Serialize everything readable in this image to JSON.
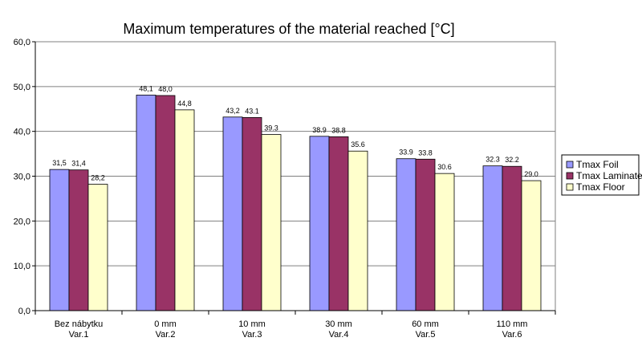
{
  "chart_data": {
    "type": "bar",
    "title": "Maximum temperatures of the material reached [°C]",
    "xlabel": "",
    "ylabel": "",
    "ylim": [
      0,
      60
    ],
    "yticks": [
      "0,0",
      "10,0",
      "20,0",
      "30,0",
      "40,0",
      "50,0",
      "60,0"
    ],
    "ytick_values": [
      0,
      10,
      20,
      30,
      40,
      50,
      60
    ],
    "grid": true,
    "legend_position": "right",
    "categories": [
      [
        "Bez nábytku",
        "Var.1"
      ],
      [
        "0 mm",
        "Var.2"
      ],
      [
        "10 mm",
        "Var.3"
      ],
      [
        "30 mm",
        "Var.4"
      ],
      [
        "60 mm",
        "Var.5"
      ],
      [
        "110 mm",
        "Var.6"
      ]
    ],
    "series": [
      {
        "name": "Tmax Foil",
        "color": "#9999ff",
        "values": [
          31.5,
          48.1,
          43.2,
          38.9,
          33.9,
          32.3
        ],
        "labels": [
          "31,5",
          "48,1",
          "43,2",
          "38.9",
          "33.9",
          "32.3"
        ]
      },
      {
        "name": "Tmax Laminate",
        "color": "#993366",
        "values": [
          31.4,
          48.0,
          43.1,
          38.8,
          33.8,
          32.2
        ],
        "labels": [
          "31,4",
          "48,0",
          "43.1",
          "38.8",
          "33.8",
          "32.2"
        ]
      },
      {
        "name": "Tmax Floor",
        "color": "#ffffcc",
        "values": [
          28.2,
          44.8,
          39.3,
          35.6,
          30.6,
          29.0
        ],
        "labels": [
          "28,2",
          "44,8",
          "39.3",
          "35.6",
          "30.6",
          "29.0"
        ]
      }
    ]
  }
}
